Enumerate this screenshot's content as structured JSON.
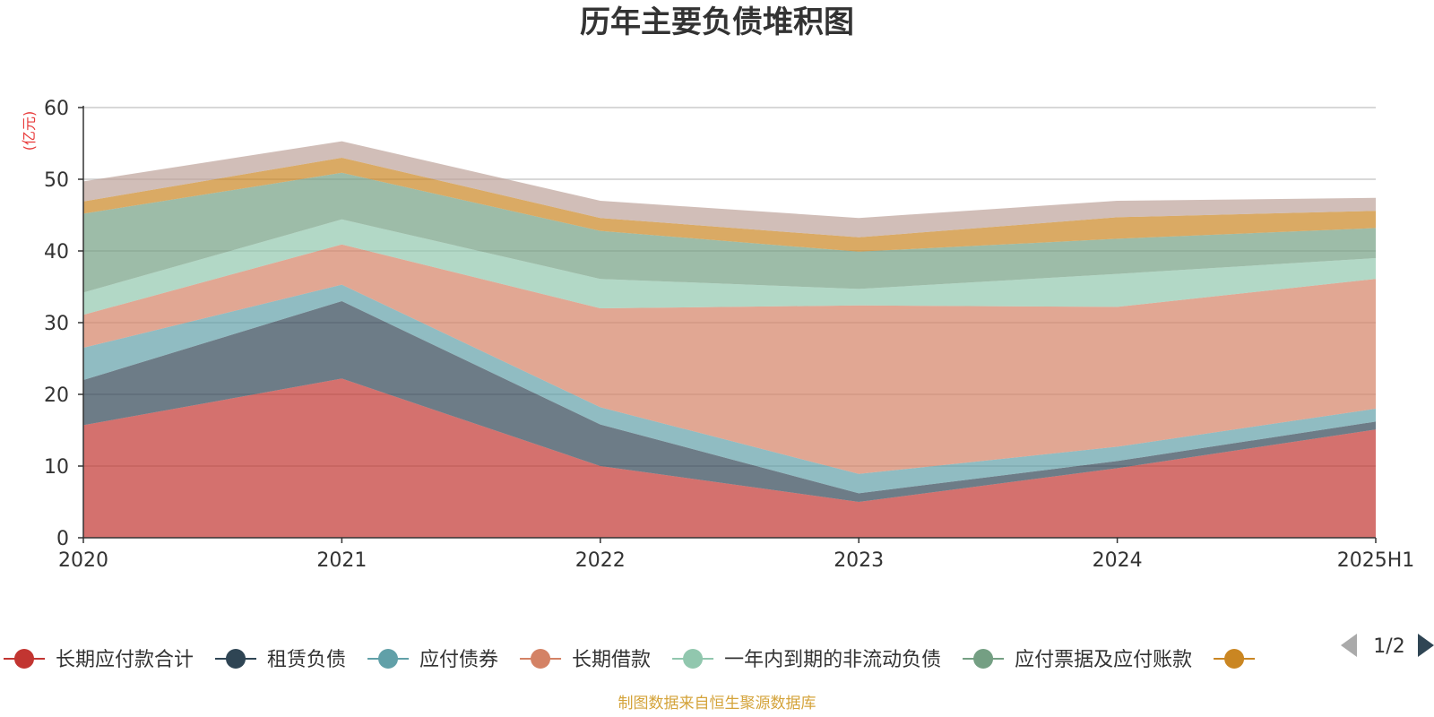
{
  "chart_data": {
    "type": "area",
    "stacked": true,
    "title": "历年主要负债堆积图",
    "unit_label": "(亿元)",
    "x": [
      "2020",
      "2021",
      "2022",
      "2023",
      "2024",
      "2025H1"
    ],
    "ylim": [
      0,
      60
    ],
    "y_ticks": [
      0,
      10,
      20,
      30,
      40,
      50,
      60
    ],
    "grid": true,
    "series": [
      {
        "name": "长期应付款合计",
        "color": "#c23531",
        "values": [
          15.7,
          22.2,
          10.0,
          5.0,
          9.7,
          15.1
        ]
      },
      {
        "name": "租赁负债",
        "color": "#2f4554",
        "values": [
          6.3,
          10.8,
          5.8,
          1.2,
          1.0,
          1.1
        ]
      },
      {
        "name": "应付债券",
        "color": "#61a0a8",
        "values": [
          4.5,
          2.3,
          2.4,
          2.7,
          2.0,
          1.8
        ]
      },
      {
        "name": "长期借款",
        "color": "#d48265",
        "values": [
          4.6,
          5.6,
          13.8,
          23.5,
          19.5,
          18.1
        ]
      },
      {
        "name": "一年内到期的非流动负债",
        "color": "#91c7ae",
        "values": [
          3.1,
          3.5,
          4.1,
          2.3,
          4.6,
          2.9
        ]
      },
      {
        "name": "应付票据及应付账款",
        "color": "#749f83",
        "values": [
          11.0,
          6.5,
          6.7,
          5.2,
          4.9,
          4.2
        ]
      },
      {
        "name": "",
        "color": "#ca8622",
        "values": [
          1.7,
          2.1,
          1.8,
          2.0,
          3.0,
          2.4
        ]
      },
      {
        "name": "",
        "color": "#bda29a",
        "values": [
          2.8,
          2.3,
          2.4,
          2.7,
          2.3,
          1.8
        ]
      }
    ],
    "legend": {
      "position": "bottom",
      "page": "1/2"
    },
    "source": "制图数据来自恒生聚源数据库"
  }
}
